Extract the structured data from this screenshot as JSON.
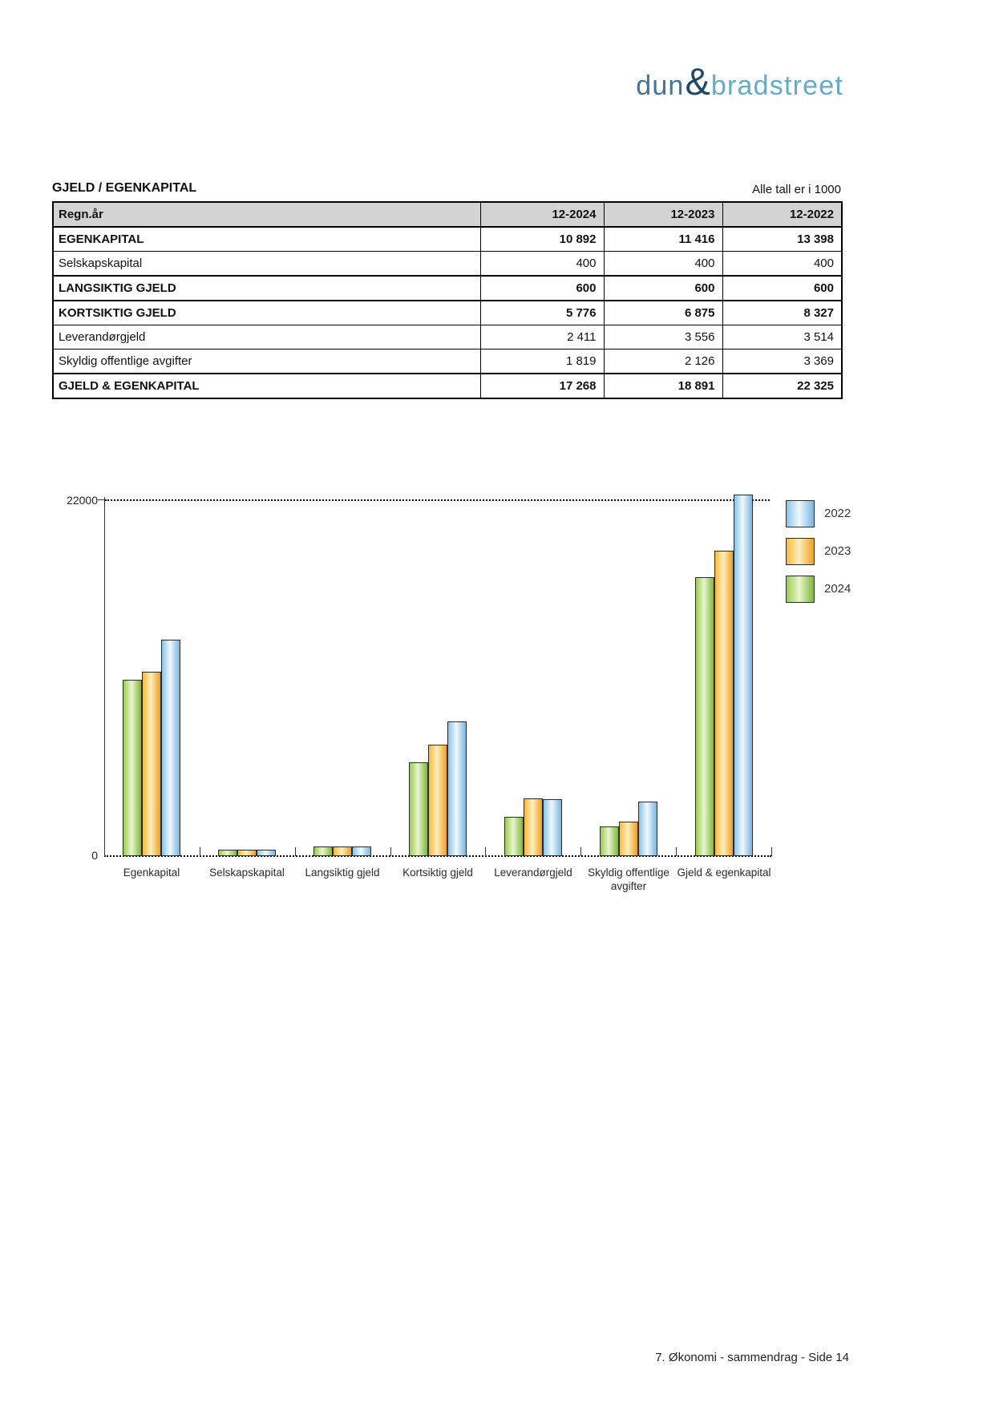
{
  "logo": {
    "dun": "dun",
    "amp": "&",
    "bradstreet": "bradstreet"
  },
  "section": {
    "title": "GJELD / EGENKAPITAL",
    "note": "Alle tall er i 1000"
  },
  "table": {
    "header": {
      "label": "Regn.år",
      "cols": [
        "12-2024",
        "12-2023",
        "12-2022"
      ]
    },
    "rows": [
      {
        "label": "EGENKAPITAL",
        "values": [
          "10 892",
          "11 416",
          "13 398"
        ],
        "bold": true
      },
      {
        "label": "Selskapskapital",
        "values": [
          "400",
          "400",
          "400"
        ],
        "bold": false
      },
      {
        "label": "LANGSIKTIG GJELD",
        "values": [
          "600",
          "600",
          "600"
        ],
        "bold": true
      },
      {
        "label": "KORTSIKTIG GJELD",
        "values": [
          "5 776",
          "6 875",
          "8 327"
        ],
        "bold": true
      },
      {
        "label": "Leverandørgjeld",
        "values": [
          "2 411",
          "3 556",
          "3 514"
        ],
        "bold": false
      },
      {
        "label": "Skyldig offentlige avgifter",
        "values": [
          "1 819",
          "2 126",
          "3 369"
        ],
        "bold": false
      },
      {
        "label": "GJELD & EGENKAPITAL",
        "values": [
          "17 268",
          "18 891",
          "22 325"
        ],
        "bold": true
      }
    ]
  },
  "chart_data": {
    "type": "bar",
    "title": "",
    "xlabel": "",
    "ylabel": "",
    "categories": [
      "Egenkapital",
      "Selskapskapital",
      "Langsiktig gjeld",
      "Kortsiktig gjeld",
      "Leverandørgjeld",
      "Skyldig offentlige avgifter",
      "Gjeld & egenkapital"
    ],
    "series": [
      {
        "name": "2024",
        "values": [
          10892,
          400,
          600,
          5776,
          2411,
          1819,
          17268
        ]
      },
      {
        "name": "2023",
        "values": [
          11416,
          400,
          600,
          6875,
          3556,
          2126,
          18891
        ]
      },
      {
        "name": "2022",
        "values": [
          13398,
          400,
          600,
          8327,
          3514,
          3369,
          22325
        ]
      }
    ],
    "bar_order": [
      "2024",
      "2023",
      "2022"
    ],
    "legend_order": [
      "2022",
      "2023",
      "2024"
    ],
    "colors": {
      "2024": {
        "edge_left": "#9ccb4f",
        "mid": "#e9f6cf",
        "edge_right": "#7eb63c"
      },
      "2023": {
        "edge_left": "#f7b93c",
        "mid": "#fdeebd",
        "edge_right": "#ee9f20"
      },
      "2022": {
        "edge_left": "#8ac2e8",
        "mid": "#f0f9fe",
        "edge_right": "#7ab5e0"
      }
    },
    "ylim": [
      0,
      22000
    ],
    "ytick_labels": [
      "22000",
      "0"
    ],
    "grid": "single dotted line at 22000",
    "legend_position": "top-right"
  },
  "footer": {
    "text": "7. Økonomi - sammendrag - Side 14"
  }
}
